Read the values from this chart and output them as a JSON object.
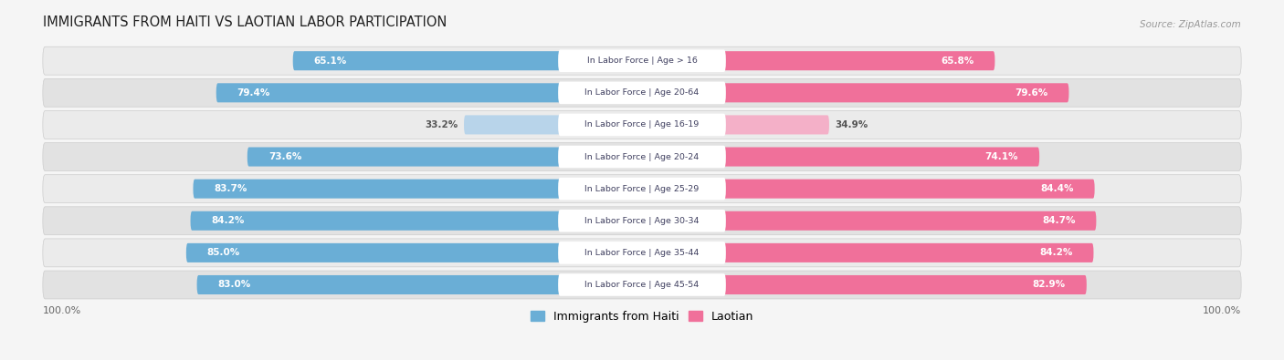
{
  "title": "IMMIGRANTS FROM HAITI VS LAOTIAN LABOR PARTICIPATION",
  "source": "Source: ZipAtlas.com",
  "categories": [
    "In Labor Force | Age > 16",
    "In Labor Force | Age 20-64",
    "In Labor Force | Age 16-19",
    "In Labor Force | Age 20-24",
    "In Labor Force | Age 25-29",
    "In Labor Force | Age 30-34",
    "In Labor Force | Age 35-44",
    "In Labor Force | Age 45-54"
  ],
  "haiti_values": [
    65.1,
    79.4,
    33.2,
    73.6,
    83.7,
    84.2,
    85.0,
    83.0
  ],
  "laotian_values": [
    65.8,
    79.6,
    34.9,
    74.1,
    84.4,
    84.7,
    84.2,
    82.9
  ],
  "haiti_color": "#6aaed6",
  "haiti_color_light": "#b8d4ea",
  "laotian_color": "#f0709a",
  "laotian_color_light": "#f4b0c8",
  "row_bg_odd": "#ebebeb",
  "row_bg_even": "#e2e2e2",
  "label_color_white": "#ffffff",
  "label_color_dark": "#555555",
  "max_value": 100.0,
  "legend_haiti": "Immigrants from Haiti",
  "legend_laotian": "Laotian",
  "center_label_color": "#404060",
  "center_box_color": "#ffffff"
}
